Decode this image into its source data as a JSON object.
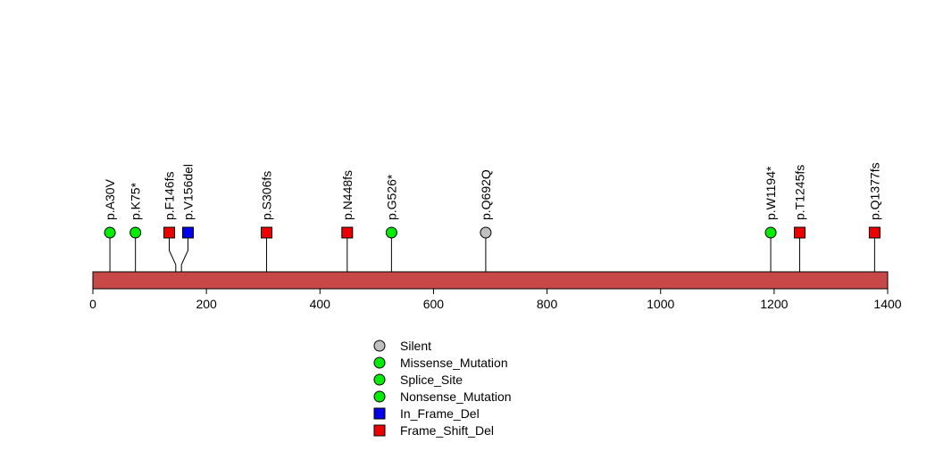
{
  "chart_data": {
    "type": "lollipop",
    "title": "",
    "xlabel": "",
    "ylabel": "",
    "xlim": [
      0,
      1400
    ],
    "x_ticks": [
      0,
      200,
      400,
      600,
      800,
      1000,
      1200,
      1400
    ],
    "protein_bar_color": "#c84848",
    "mutations": [
      {
        "label": "p.A30V",
        "position": 30,
        "type": "Missense_Mutation"
      },
      {
        "label": "p.K75*",
        "position": 75,
        "type": "Nonsense_Mutation"
      },
      {
        "label": "p.F146fs",
        "position": 146,
        "type": "Frame_Shift_Del"
      },
      {
        "label": "p.V156del",
        "position": 156,
        "type": "In_Frame_Del"
      },
      {
        "label": "p.S306fs",
        "position": 306,
        "type": "Frame_Shift_Del"
      },
      {
        "label": "p.N448fs",
        "position": 448,
        "type": "Frame_Shift_Del"
      },
      {
        "label": "p.G526*",
        "position": 526,
        "type": "Nonsense_Mutation"
      },
      {
        "label": "p.Q692Q",
        "position": 692,
        "type": "Silent"
      },
      {
        "label": "p.W1194*",
        "position": 1194,
        "type": "Nonsense_Mutation"
      },
      {
        "label": "p.T1245fs",
        "position": 1245,
        "type": "Frame_Shift_Del"
      },
      {
        "label": "p.Q1377fs",
        "position": 1377,
        "type": "Frame_Shift_Del"
      }
    ],
    "legend": [
      {
        "label": "Silent",
        "shape": "circle",
        "color": "#c0c0c0"
      },
      {
        "label": "Missense_Mutation",
        "shape": "circle",
        "color": "#00ee00"
      },
      {
        "label": "Splice_Site",
        "shape": "circle",
        "color": "#00ee00"
      },
      {
        "label": "Nonsense_Mutation",
        "shape": "circle",
        "color": "#00ee00"
      },
      {
        "label": "In_Frame_Del",
        "shape": "square",
        "color": "#0000ee"
      },
      {
        "label": "Frame_Shift_Del",
        "shape": "square",
        "color": "#ee0000"
      }
    ]
  }
}
